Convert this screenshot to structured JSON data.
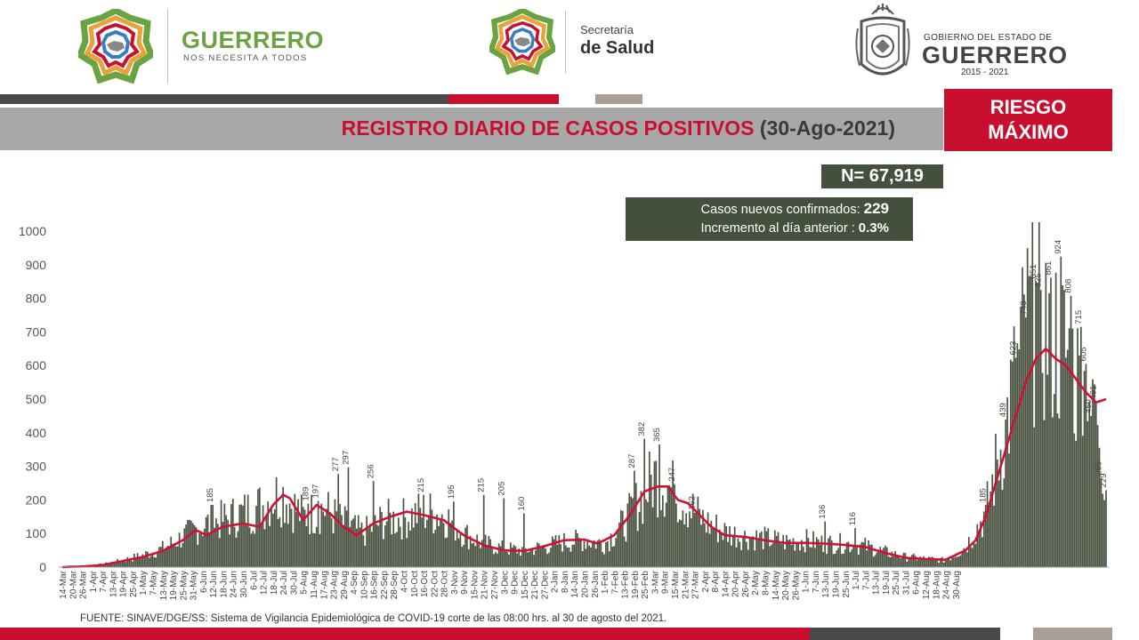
{
  "header": {
    "brand_name": "GUERRERO",
    "brand_tagline": "NOS NECESITA A TODOS",
    "salud_line1": "Secretaría",
    "salud_line2": "de Salud",
    "gov_line1": "GOBIERNO DEL ESTADO DE",
    "gov_line2": "GUERRERO",
    "gov_line3": "2015 - 2021"
  },
  "title": {
    "main": "REGISTRO DIARIO DE CASOS POSITIVOS",
    "date": "(30-Ago-2021)"
  },
  "risk": {
    "line1": "RIESGO",
    "line2": "MÁXIMO"
  },
  "total": "N= 67,919",
  "summary": {
    "new_label": "Casos nuevos confirmados: ",
    "new_value": "229",
    "increase_label": "Incremento al día anterior : ",
    "increase_value": "0.3%"
  },
  "footnote": "FUENTE: SINAVE/DGE/SS: Sistema de Vigilancia Epidemiológica de COVID-19 corte de las 08:00 hrs. al 30 de agosto del 2021.",
  "colors": {
    "bars": "#4b5443",
    "average_line": "#d21033",
    "brand_red": "#c8102e",
    "box_green": "#454f3d"
  },
  "chart_data": {
    "type": "bar",
    "title": "REGISTRO DIARIO DE CASOS POSITIVOS (30-Ago-2021)",
    "xlabel": "",
    "ylabel": "",
    "ylim": [
      0,
      1000
    ],
    "yticks": [
      0,
      100,
      200,
      300,
      400,
      500,
      600,
      700,
      800,
      900,
      1000
    ],
    "x_start_date": "14-Mar",
    "x_end_date": "30-Aug",
    "x_tick_labels": [
      "14-Mar",
      "20-Mar",
      "26-Mar",
      "1-Apr",
      "7-Apr",
      "13-Apr",
      "19-Apr",
      "25-Apr",
      "1-May",
      "7-May",
      "13-May",
      "19-May",
      "25-May",
      "31-May",
      "6-Jun",
      "12-Jun",
      "18-Jun",
      "24-Jun",
      "30-Jun",
      "6-Jul",
      "12-Jul",
      "18-Jul",
      "24-Jul",
      "30-Jul",
      "5-Aug",
      "11-Aug",
      "17-Aug",
      "23-Aug",
      "29-Aug",
      "4-Sep",
      "10-Sep",
      "16-Sep",
      "22-Sep",
      "28-Sep",
      "4-Oct",
      "10-Oct",
      "16-Oct",
      "22-Oct",
      "28-Oct",
      "3-Nov",
      "9-Nov",
      "15-Nov",
      "21-Nov",
      "27-Nov",
      "3-Dec",
      "9-Dec",
      "15-Dec",
      "21-Dec",
      "27-Dec",
      "2-Jan",
      "8-Jan",
      "14-Jan",
      "20-Jan",
      "26-Jan",
      "1-Feb",
      "7-Feb",
      "13-Feb",
      "19-Feb",
      "25-Feb",
      "3-Mar",
      "9-Mar",
      "15-Mar",
      "21-Mar",
      "27-Mar",
      "2-Apr",
      "8-Apr",
      "14-Apr",
      "20-Apr",
      "26-Apr",
      "2-May",
      "8-May",
      "14-May",
      "20-May",
      "26-May",
      "1-Jun",
      "7-Jun",
      "13-Jun",
      "19-Jun",
      "25-Jun",
      "1-Jul",
      "7-Jul",
      "13-Jul",
      "19-Jul",
      "25-Jul",
      "31-Jul",
      "6-Aug",
      "12-Aug",
      "18-Aug",
      "24-Aug",
      "30-Aug"
    ],
    "series_daily": {
      "name": "",
      "profile": [
        [
          0,
          1
        ],
        [
          12,
          3
        ],
        [
          24,
          8
        ],
        [
          36,
          20
        ],
        [
          48,
          35
        ],
        [
          60,
          55
        ],
        [
          72,
          90
        ],
        [
          84,
          125
        ],
        [
          96,
          140
        ],
        [
          108,
          160
        ],
        [
          120,
          185
        ],
        [
          126,
          210
        ],
        [
          132,
          215
        ],
        [
          144,
          150
        ],
        [
          156,
          175
        ],
        [
          168,
          130
        ],
        [
          180,
          100
        ],
        [
          192,
          140
        ],
        [
          204,
          145
        ],
        [
          216,
          165
        ],
        [
          228,
          155
        ],
        [
          240,
          100
        ],
        [
          252,
          70
        ],
        [
          264,
          55
        ],
        [
          276,
          50
        ],
        [
          288,
          60
        ],
        [
          300,
          75
        ],
        [
          312,
          80
        ],
        [
          324,
          70
        ],
        [
          336,
          130
        ],
        [
          348,
          220
        ],
        [
          354,
          270
        ],
        [
          360,
          250
        ],
        [
          372,
          195
        ],
        [
          384,
          135
        ],
        [
          396,
          105
        ],
        [
          408,
          90
        ],
        [
          420,
          85
        ],
        [
          432,
          75
        ],
        [
          444,
          80
        ],
        [
          456,
          70
        ],
        [
          468,
          70
        ],
        [
          480,
          62
        ],
        [
          492,
          45
        ],
        [
          504,
          30
        ],
        [
          516,
          25
        ],
        [
          528,
          20
        ],
        [
          540,
          60
        ],
        [
          552,
          160
        ],
        [
          564,
          420
        ],
        [
          576,
          700
        ],
        [
          582,
          760
        ],
        [
          588,
          720
        ],
        [
          594,
          690
        ],
        [
          600,
          640
        ],
        [
          606,
          560
        ],
        [
          612,
          520
        ],
        [
          618,
          540
        ],
        [
          624,
          229
        ]
      ],
      "labeled_peaks": [
        [
          90,
          185
        ],
        [
          147,
          189
        ],
        [
          153,
          197
        ],
        [
          165,
          277
        ],
        [
          171,
          297
        ],
        [
          186,
          256
        ],
        [
          216,
          215
        ],
        [
          234,
          195
        ],
        [
          252,
          215
        ],
        [
          264,
          205
        ],
        [
          276,
          160
        ],
        [
          342,
          287
        ],
        [
          348,
          382
        ],
        [
          357,
          365
        ],
        [
          366,
          247
        ],
        [
          378,
          162
        ],
        [
          456,
          136
        ],
        [
          474,
          116
        ],
        [
          552,
          185
        ],
        [
          564,
          439
        ],
        [
          570,
          623
        ],
        [
          576,
          743
        ],
        [
          582,
          851
        ],
        [
          585,
          825
        ],
        [
          591,
          861
        ],
        [
          597,
          924
        ],
        [
          603,
          808
        ],
        [
          609,
          715
        ],
        [
          612,
          605
        ],
        [
          615,
          450
        ],
        [
          618,
          491
        ],
        [
          621,
          265
        ],
        [
          624,
          229
        ]
      ]
    },
    "series_average": {
      "name": "",
      "profile": [
        [
          0,
          0
        ],
        [
          12,
          2
        ],
        [
          24,
          6
        ],
        [
          36,
          18
        ],
        [
          48,
          30
        ],
        [
          60,
          48
        ],
        [
          72,
          80
        ],
        [
          80,
          110
        ],
        [
          86,
          95
        ],
        [
          96,
          120
        ],
        [
          108,
          130
        ],
        [
          118,
          120
        ],
        [
          126,
          185
        ],
        [
          132,
          215
        ],
        [
          136,
          205
        ],
        [
          144,
          140
        ],
        [
          152,
          185
        ],
        [
          160,
          160
        ],
        [
          168,
          120
        ],
        [
          176,
          95
        ],
        [
          186,
          130
        ],
        [
          196,
          150
        ],
        [
          206,
          165
        ],
        [
          216,
          155
        ],
        [
          228,
          140
        ],
        [
          240,
          95
        ],
        [
          252,
          65
        ],
        [
          264,
          50
        ],
        [
          276,
          48
        ],
        [
          288,
          62
        ],
        [
          300,
          80
        ],
        [
          312,
          82
        ],
        [
          320,
          70
        ],
        [
          330,
          95
        ],
        [
          340,
          160
        ],
        [
          348,
          225
        ],
        [
          356,
          240
        ],
        [
          362,
          240
        ],
        [
          368,
          200
        ],
        [
          374,
          190
        ],
        [
          380,
          160
        ],
        [
          388,
          120
        ],
        [
          396,
          95
        ],
        [
          408,
          90
        ],
        [
          420,
          80
        ],
        [
          432,
          72
        ],
        [
          444,
          72
        ],
        [
          456,
          70
        ],
        [
          468,
          66
        ],
        [
          480,
          60
        ],
        [
          492,
          42
        ],
        [
          504,
          28
        ],
        [
          516,
          24
        ],
        [
          528,
          22
        ],
        [
          540,
          50
        ],
        [
          546,
          80
        ],
        [
          552,
          150
        ],
        [
          558,
          250
        ],
        [
          564,
          350
        ],
        [
          570,
          450
        ],
        [
          576,
          550
        ],
        [
          582,
          620
        ],
        [
          588,
          650
        ],
        [
          594,
          620
        ],
        [
          600,
          600
        ],
        [
          606,
          560
        ],
        [
          612,
          520
        ],
        [
          618,
          490
        ],
        [
          624,
          500
        ]
      ]
    }
  }
}
